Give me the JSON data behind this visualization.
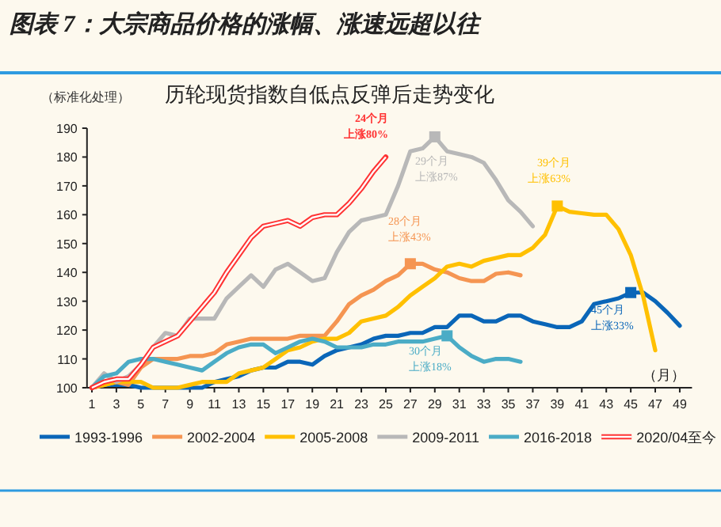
{
  "chart_data": {
    "type": "line",
    "title": "图表 7：大宗商品价格的涨幅、涨速远超以往",
    "subtitle": "历轮现货指数自低点反弹后走势变化",
    "ylabel": "（标准化处理）",
    "xlabel": "（月）",
    "xlim": [
      0.6,
      50
    ],
    "xticks": [
      1,
      3,
      5,
      7,
      9,
      11,
      13,
      15,
      17,
      19,
      21,
      23,
      25,
      27,
      29,
      31,
      33,
      35,
      37,
      39,
      41,
      43,
      45,
      47,
      49
    ],
    "ylim": [
      100,
      190
    ],
    "yticks": [
      100,
      110,
      120,
      130,
      140,
      150,
      160,
      170,
      180,
      190
    ],
    "grid": false,
    "legend": "bottom",
    "line_style": "solid",
    "marker": "none",
    "x": [
      1,
      2,
      3,
      4,
      5,
      6,
      7,
      8,
      9,
      10,
      11,
      12,
      13,
      14,
      15,
      16,
      17,
      18,
      19,
      20,
      21,
      22,
      23,
      24,
      25,
      26,
      27,
      28,
      29,
      30,
      31,
      32,
      33,
      34,
      35,
      36,
      37,
      38,
      39,
      40,
      41,
      42,
      43,
      44,
      45,
      46,
      47,
      48,
      49
    ],
    "series": [
      {
        "name": "1993-1996",
        "color": "#0a66b8",
        "values": [
          100,
          101,
          101,
          101,
          100,
          100,
          100,
          100,
          100,
          100,
          102,
          103,
          104,
          106,
          107,
          107,
          109,
          109,
          108,
          111,
          113,
          114,
          115,
          117,
          118,
          118,
          119,
          119,
          121,
          121,
          125,
          125,
          123,
          123,
          125,
          125,
          123,
          122,
          121,
          121,
          123,
          129,
          130,
          131,
          133,
          133,
          130,
          126,
          121.5
        ]
      },
      {
        "name": "2002-2004",
        "color": "#f59552",
        "values": [
          100,
          101,
          102,
          101,
          107,
          110,
          110,
          110,
          111,
          111,
          112,
          115,
          116,
          117,
          117,
          117,
          117,
          118,
          118,
          118,
          123,
          129,
          132,
          134,
          137,
          139,
          143,
          143,
          141,
          140,
          138,
          137,
          137,
          139.5,
          140,
          139,
          null,
          null,
          null,
          null,
          null,
          null,
          null,
          null,
          null,
          null,
          null,
          null,
          null
        ]
      },
      {
        "name": "2005-2008",
        "color": "#ffc000",
        "values": [
          100,
          101,
          102,
          102,
          102,
          100,
          100,
          100,
          101,
          102,
          102,
          102,
          105,
          106,
          107,
          110,
          113,
          114,
          116,
          117,
          117,
          119,
          123,
          124,
          125,
          128,
          132,
          135,
          138,
          142,
          143,
          142,
          144,
          145,
          146,
          146,
          148.5,
          153,
          163,
          161,
          160.5,
          160,
          160,
          155,
          146,
          132,
          113,
          null,
          null
        ]
      },
      {
        "name": "2009-2011",
        "color": "#b8b8b8",
        "values": [
          100,
          105,
          102,
          104,
          108,
          114,
          119,
          118,
          124,
          124,
          124,
          131,
          135,
          139,
          135,
          141,
          143,
          140,
          137,
          138,
          147,
          154,
          158,
          159,
          160,
          170,
          182,
          183,
          187,
          182,
          181,
          180,
          178,
          172,
          165,
          161,
          156,
          null,
          null,
          null,
          null,
          null,
          null,
          null,
          null,
          null,
          null,
          null,
          null
        ]
      },
      {
        "name": "2016-2018",
        "color": "#4bacc6",
        "values": [
          100,
          104,
          105,
          109,
          110,
          110,
          109,
          108,
          107,
          106,
          109,
          112,
          114,
          115,
          115,
          112,
          114,
          116,
          117,
          116,
          114,
          114,
          114,
          115,
          115,
          116,
          116,
          116,
          117,
          118,
          114,
          111,
          109,
          110,
          110,
          109,
          null,
          null,
          null,
          null,
          null,
          null,
          null,
          null,
          null,
          null,
          null,
          null,
          null
        ]
      },
      {
        "name": "2020/04至今",
        "color": "#ff3333",
        "values": [
          100,
          102,
          103,
          103,
          108,
          114,
          116,
          118,
          123,
          128,
          133,
          140,
          146,
          152,
          156,
          157,
          158,
          156,
          159,
          160,
          160,
          164,
          169,
          175,
          180,
          null,
          null,
          null,
          null,
          null,
          null,
          null,
          null,
          null,
          null,
          null,
          null,
          null,
          null,
          null,
          null,
          null,
          null,
          null,
          null,
          null,
          null,
          null,
          null
        ]
      },
      {
        "type": "scatter",
        "marker": "square",
        "x": [
          45,
          27,
          39,
          29,
          30
        ],
        "colors": [
          "#0a66b8",
          "#f59552",
          "#ffc000",
          "#b8b8b8",
          "#4bacc6"
        ],
        "values": [
          133,
          143,
          163,
          187,
          118
        ]
      }
    ],
    "annotations": [
      "24个月",
      "上涨80%",
      "29个月",
      "上涨87%",
      "39个月",
      "上涨63%",
      "28个月",
      "上涨43%",
      "45个月",
      "上涨33%",
      "30个月",
      "上涨18%"
    ]
  }
}
